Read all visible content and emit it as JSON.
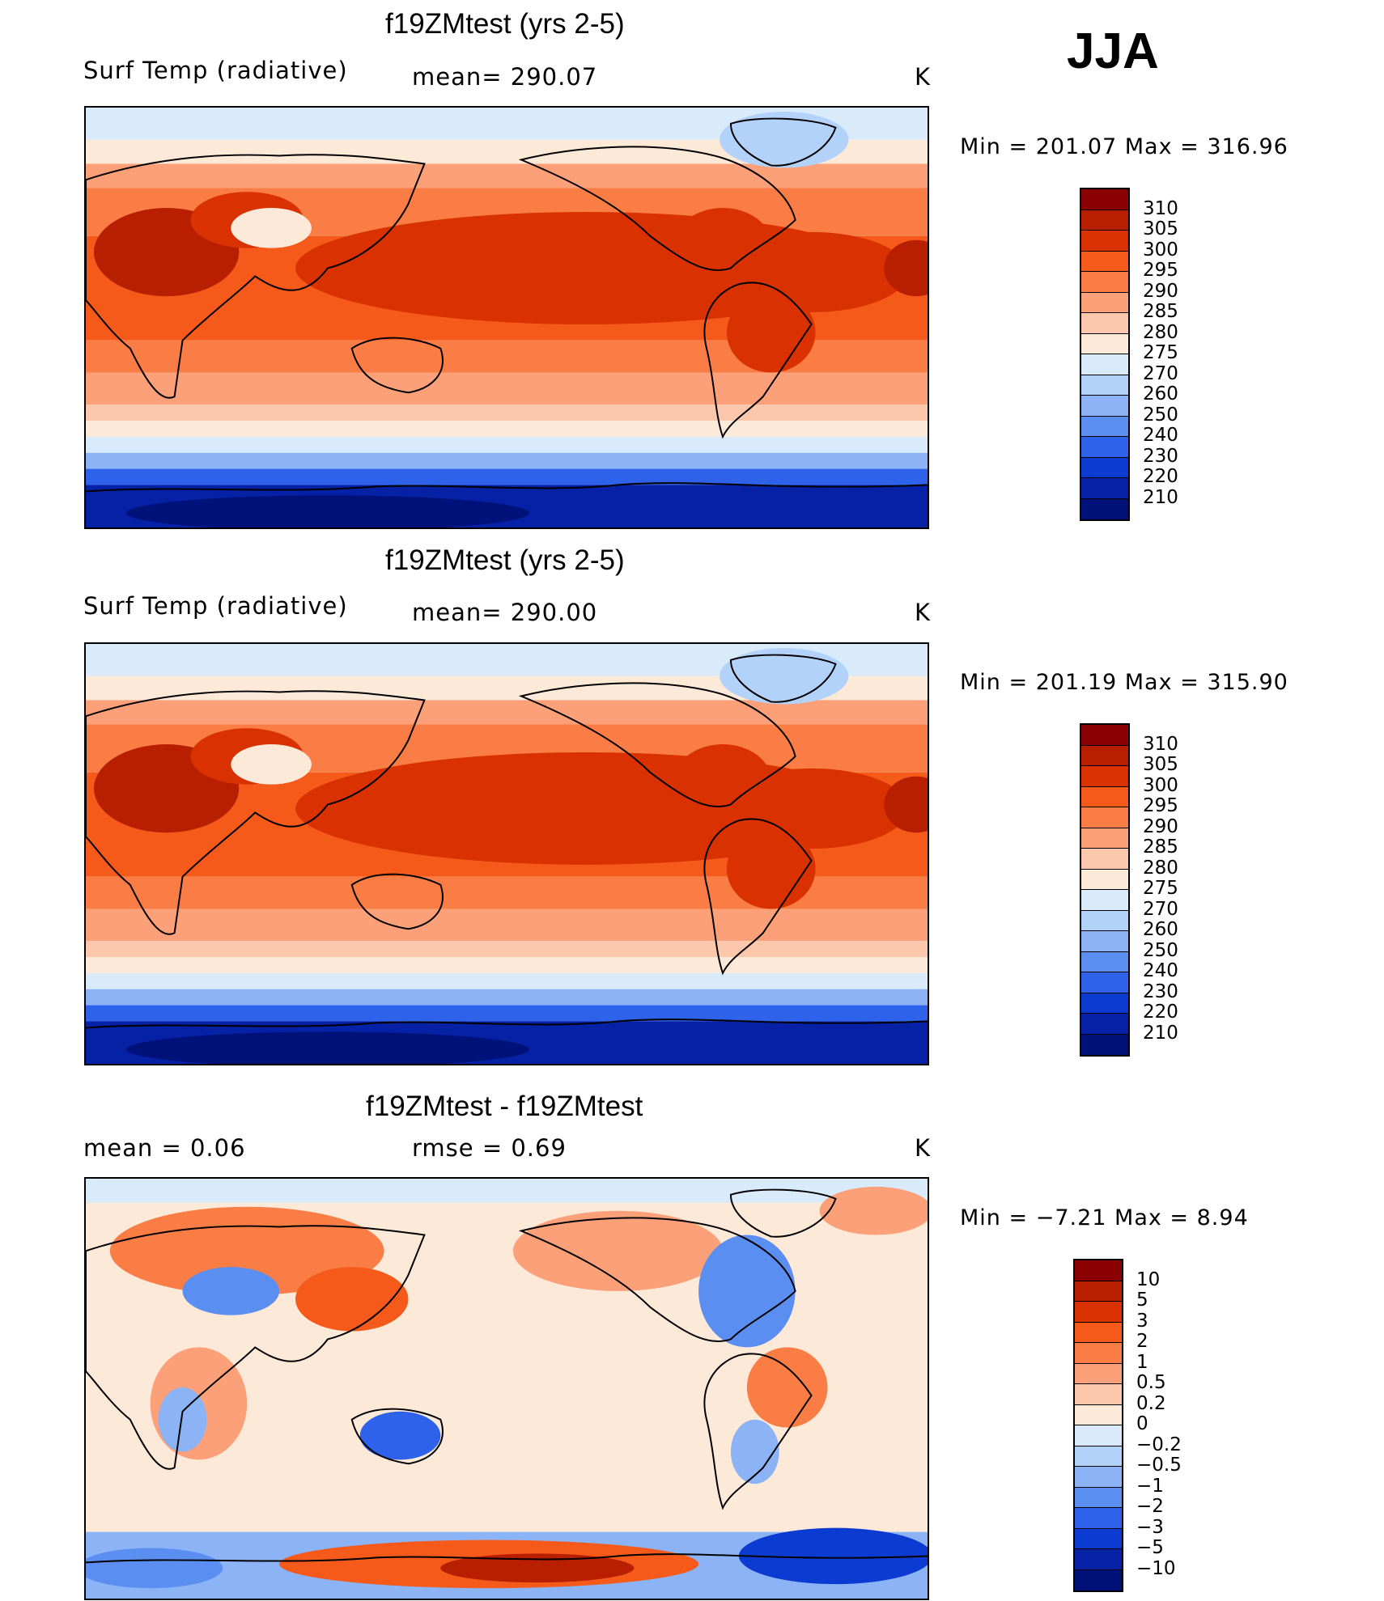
{
  "season": "JJA",
  "panels": [
    {
      "title": "f19ZMtest (yrs 2-5)",
      "left_label": "Surf Temp (radiative)",
      "center_label": "mean=  290.07",
      "units": "K",
      "minmax": "Min  =  201.07  Max  =  316.96",
      "levels": [
        "310",
        "305",
        "300",
        "295",
        "290",
        "285",
        "280",
        "275",
        "270",
        "260",
        "250",
        "240",
        "230",
        "220",
        "210"
      ],
      "colors": [
        "#8b0000",
        "#b81f00",
        "#d93100",
        "#f55a1a",
        "#fa7d45",
        "#fca079",
        "#fdc7ab",
        "#fde9d8",
        "#d9ebfb",
        "#b3d2fa",
        "#8cb3f5",
        "#5a8ef0",
        "#2e62eb",
        "#0c3bd1",
        "#0621a6",
        "#00127a"
      ]
    },
    {
      "title": "f19ZMtest (yrs 2-5)",
      "left_label": "Surf Temp (radiative)",
      "center_label": "mean=  290.00",
      "units": "K",
      "minmax": "Min  =  201.19  Max  =  315.90",
      "levels": [
        "310",
        "305",
        "300",
        "295",
        "290",
        "285",
        "280",
        "275",
        "270",
        "260",
        "250",
        "240",
        "230",
        "220",
        "210"
      ],
      "colors": [
        "#8b0000",
        "#b81f00",
        "#d93100",
        "#f55a1a",
        "#fa7d45",
        "#fca079",
        "#fdc7ab",
        "#fde9d8",
        "#d9ebfb",
        "#b3d2fa",
        "#8cb3f5",
        "#5a8ef0",
        "#2e62eb",
        "#0c3bd1",
        "#0621a6",
        "#00127a"
      ]
    },
    {
      "title": "f19ZMtest - f19ZMtest",
      "left_label": "mean  =      0.06",
      "center_label": "rmse  =      0.69",
      "units": "K",
      "minmax": "Min  =     −7.21  Max  =       8.94",
      "levels": [
        "10",
        "5",
        "3",
        "2",
        "1",
        "0.5",
        "0.2",
        "0",
        "−0.2",
        "−0.5",
        "−1",
        "−2",
        "−3",
        "−5",
        "−10"
      ],
      "colors": [
        "#8b0000",
        "#b81f00",
        "#d93100",
        "#f55a1a",
        "#fa7d45",
        "#fca079",
        "#fdc7ab",
        "#fde9d8",
        "#d9ebfb",
        "#b3d2fa",
        "#8cb3f5",
        "#5a8ef0",
        "#2e62eb",
        "#0c3bd1",
        "#0621a6",
        "#00127a"
      ]
    }
  ]
}
